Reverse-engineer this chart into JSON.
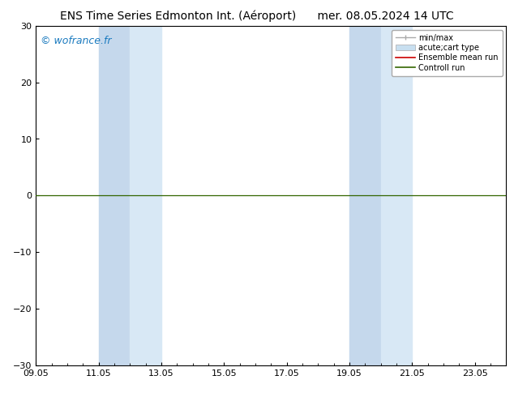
{
  "title": "ENS Time Series Edmonton Int. (Aéroport)      mer. 08.05.2024 14 UTC",
  "watermark": "© wofrance.fr",
  "watermark_color": "#1a7abf",
  "ylim": [
    -30,
    30
  ],
  "yticks": [
    -30,
    -20,
    -10,
    0,
    10,
    20,
    30
  ],
  "xtick_labels": [
    "09.05",
    "11.05",
    "13.05",
    "15.05",
    "17.05",
    "19.05",
    "21.05",
    "23.05"
  ],
  "xtick_positions": [
    0,
    2,
    4,
    6,
    8,
    10,
    12,
    14
  ],
  "x_min": 0,
  "x_max": 15,
  "shaded_regions": [
    {
      "start": 2.0,
      "end": 2.5,
      "color": "#dce9f5"
    },
    {
      "start": 2.5,
      "end": 4.0,
      "color": "#dce9f5"
    },
    {
      "start": 10.0,
      "end": 10.5,
      "color": "#dce9f5"
    },
    {
      "start": 10.5,
      "end": 12.0,
      "color": "#dce9f5"
    }
  ],
  "shaded_pairs": [
    {
      "start": 2.0,
      "end": 4.0
    },
    {
      "start": 10.0,
      "end": 12.0
    }
  ],
  "control_run_y": 0,
  "control_run_color": "#336600",
  "ensemble_mean_color": "#cc0000",
  "minmax_color": "#aaaaaa",
  "acute_color": "#c8dff0",
  "background_color": "#ffffff",
  "plot_bg_color": "#ffffff",
  "legend_labels": [
    "min/max",
    "acute;cart type",
    "Ensemble mean run",
    "Controll run"
  ],
  "legend_colors": [
    "#aaaaaa",
    "#c8dff0",
    "#cc0000",
    "#336600"
  ],
  "title_fontsize": 10,
  "tick_fontsize": 8,
  "watermark_fontsize": 9,
  "legend_fontsize": 7
}
